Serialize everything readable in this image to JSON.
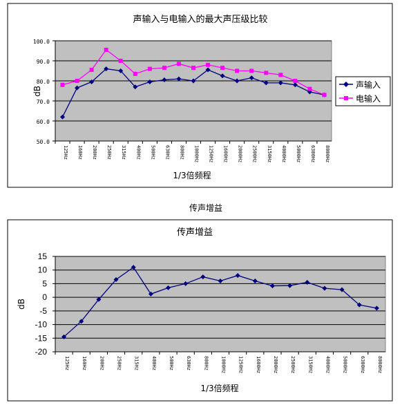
{
  "caption": "传声增益",
  "chart_data": [
    {
      "type": "line",
      "title": "声输入与电输入的最大声压级比较",
      "xlabel": "1/3倍频程",
      "ylabel": "dB",
      "ylim": [
        50,
        100
      ],
      "ytick_labels": [
        "100.0",
        "90.0",
        "80.0",
        "70.0",
        "60.0",
        "50.0"
      ],
      "categories": [
        "125Hz",
        "160Hz",
        "200Hz",
        "250Hz",
        "315Hz",
        "400Hz",
        "500Hz",
        "630Hz",
        "800Hz",
        "1000Hz",
        "1250Hz",
        "1600Hz",
        "2000Hz",
        "2500Hz",
        "3150Hz",
        "4000Hz",
        "5000Hz",
        "6300Hz",
        "8000Hz"
      ],
      "legend_position": "right",
      "series": [
        {
          "name": "声输入",
          "color": "#000080",
          "marker": "diamond",
          "values": [
            62,
            76.5,
            79.5,
            86,
            85,
            77,
            79.5,
            80.5,
            81,
            80,
            85.5,
            82.5,
            80,
            81.5,
            79,
            79,
            78,
            74.5,
            73
          ]
        },
        {
          "name": "电输入",
          "color": "#ff00ff",
          "marker": "square",
          "values": [
            78,
            80,
            85.5,
            95.5,
            90,
            83.5,
            86,
            86.5,
            88.5,
            86.5,
            88,
            86.5,
            85,
            85,
            84,
            83,
            80,
            76,
            73
          ]
        }
      ]
    },
    {
      "type": "line",
      "title": "传声增益",
      "xlabel": "1/3倍频程",
      "ylabel": "dB",
      "ylim": [
        -20,
        15
      ],
      "ytick_labels": [
        "15",
        "10",
        "5",
        "0",
        "-5",
        "-10",
        "-15",
        "-20"
      ],
      "categories": [
        "125Hz",
        "160Hz",
        "200Hz",
        "250Hz",
        "315Hz",
        "400Hz",
        "500Hz",
        "630Hz",
        "800Hz",
        "1000Hz",
        "1250Hz",
        "1600Hz",
        "2000Hz",
        "2500Hz",
        "3150Hz",
        "4000Hz",
        "5000Hz",
        "6300Hz",
        "8000Hz"
      ],
      "series": [
        {
          "color": "#000080",
          "marker": "diamond",
          "values": [
            -14.5,
            -8.8,
            -0.8,
            6.5,
            11,
            1.2,
            3.5,
            5,
            7.5,
            6,
            8,
            6,
            4.2,
            4.3,
            5.5,
            3.3,
            2.8,
            -2.8,
            -4
          ]
        }
      ]
    }
  ]
}
